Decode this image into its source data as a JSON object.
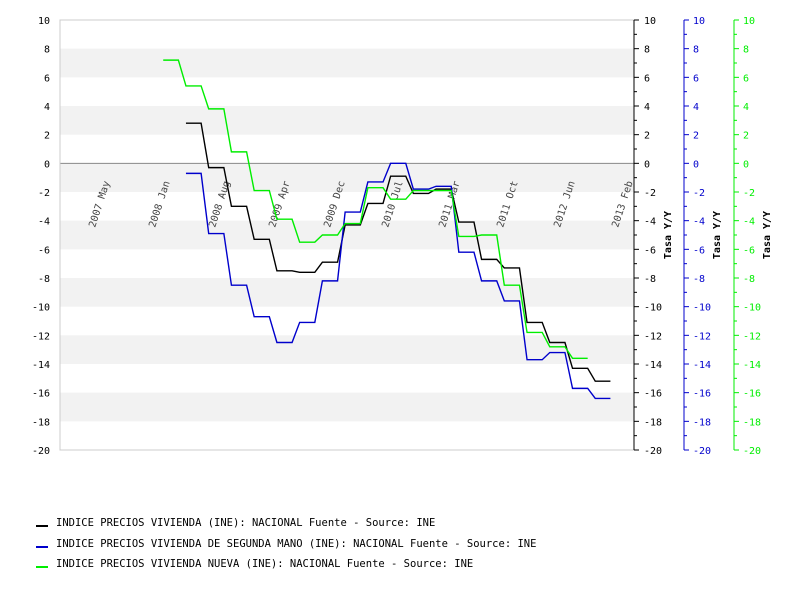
{
  "chart_data": {
    "type": "line",
    "x": [
      "2007-05",
      "2007-08",
      "2007-11",
      "2008-02",
      "2008-05",
      "2008-08",
      "2008-11",
      "2009-02",
      "2009-05",
      "2009-08",
      "2009-11",
      "2010-02",
      "2010-05",
      "2010-08",
      "2010-11",
      "2011-02",
      "2011-05",
      "2011-08",
      "2011-11",
      "2012-02",
      "2012-05",
      "2012-08",
      "2012-11"
    ],
    "x_tick_labels": [
      "2007 May",
      "2008 Jan",
      "2008 Aug",
      "2009 Apr",
      "2009 Dec",
      "2010 Jul",
      "2011 Mar",
      "2011 Oct",
      "2012 Jun",
      "2013 Feb"
    ],
    "series": [
      {
        "name": "INDICE PRECIOS VIVIENDA (INE): NACIONAL  Fuente - Source: INE",
        "color": "#000000",
        "values": [
          null,
          null,
          null,
          null,
          2.8,
          -0.3,
          -3.0,
          -5.3,
          -7.5,
          -7.6,
          -6.9,
          -4.3,
          -2.8,
          -0.9,
          -2.1,
          -1.8,
          -4.1,
          -6.7,
          -7.3,
          -11.1,
          -12.5,
          -14.3,
          -15.2
        ]
      },
      {
        "name": "INDICE PRECIOS VIVIENDA DE SEGUNDA MANO (INE): NACIONAL  Fuente - Source: INE",
        "color": "#0000cc",
        "values": [
          null,
          null,
          null,
          null,
          -0.7,
          -4.9,
          -8.5,
          -10.7,
          -12.5,
          -11.1,
          -8.2,
          -3.4,
          -1.3,
          0.0,
          -1.8,
          -1.6,
          -6.2,
          -8.2,
          -9.6,
          -13.7,
          -13.2,
          -15.7,
          -16.4
        ]
      },
      {
        "name": "INDICE PRECIOS VIVIENDA NUEVA (INE): NACIONAL  Fuente - Source: INE",
        "color": "#00ee00",
        "values": [
          null,
          null,
          null,
          7.2,
          5.4,
          3.8,
          0.8,
          -1.9,
          -3.9,
          -5.5,
          -5.0,
          -4.2,
          -1.7,
          -2.5,
          -1.9,
          -1.9,
          -5.1,
          -5.0,
          -8.5,
          -11.8,
          -12.8,
          -13.6,
          null
        ]
      }
    ],
    "ylim": [
      -20,
      10
    ],
    "y_ticks": [
      10,
      8,
      6,
      4,
      2,
      0,
      -2,
      -4,
      -6,
      -8,
      -10,
      -12,
      -14,
      -16,
      -18,
      -20
    ],
    "y_axes": [
      {
        "label": "Tasa Y/Y",
        "color": "#000000"
      },
      {
        "label": "Tasa Y/Y",
        "color": "#0000cc"
      },
      {
        "label": "Tasa Y/Y",
        "color": "#00ee00"
      }
    ],
    "grid": true
  }
}
